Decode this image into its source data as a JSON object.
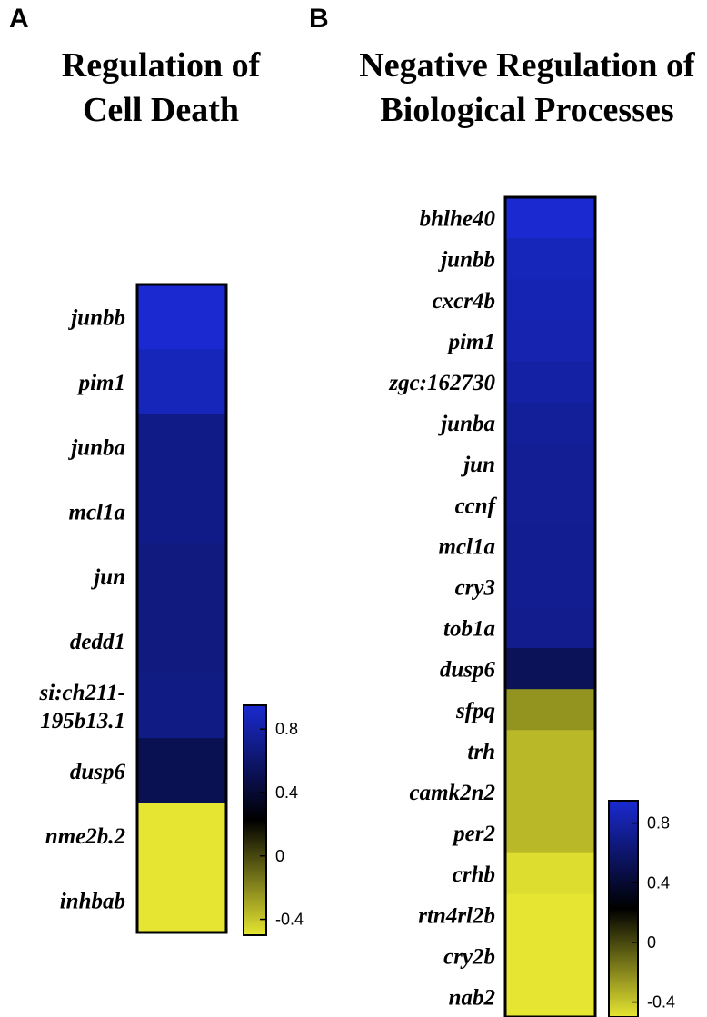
{
  "chart_data": [
    {
      "type": "heatmap",
      "panel": "A",
      "title_lines": [
        "Regulation of",
        "Cell Death"
      ],
      "rows": [
        {
          "label": [
            "junbb"
          ],
          "value": 0.95
        },
        {
          "label": [
            "pim1"
          ],
          "value": 0.85
        },
        {
          "label": [
            "junba"
          ],
          "value": 0.62
        },
        {
          "label": [
            "mcl1a"
          ],
          "value": 0.62
        },
        {
          "label": [
            "jun"
          ],
          "value": 0.58
        },
        {
          "label": [
            "dedd1"
          ],
          "value": 0.58
        },
        {
          "label": [
            "si:ch211-",
            "195b13.1"
          ],
          "value": 0.6
        },
        {
          "label": [
            "dusp6"
          ],
          "value": 0.38
        },
        {
          "label": [
            "nme2b.2"
          ],
          "value": -0.5
        },
        {
          "label": [
            "inhbab"
          ],
          "value": -0.6
        }
      ],
      "colorbar": {
        "range": [
          -0.5,
          0.95
        ],
        "ticks": [
          0.8,
          0.4,
          0,
          -0.4
        ],
        "tick_labels": [
          "0.8",
          "0.4",
          "0",
          "-0.4"
        ]
      }
    },
    {
      "type": "heatmap",
      "panel": "B",
      "title_lines": [
        "Negative Regulation of",
        "Biological Processes"
      ],
      "rows": [
        {
          "label": [
            "bhlhe40"
          ],
          "value": 0.95
        },
        {
          "label": [
            "junbb"
          ],
          "value": 0.85
        },
        {
          "label": [
            "cxcr4b"
          ],
          "value": 0.82
        },
        {
          "label": [
            "pim1"
          ],
          "value": 0.8
        },
        {
          "label": [
            "zgc:162730"
          ],
          "value": 0.75
        },
        {
          "label": [
            "junba"
          ],
          "value": 0.7
        },
        {
          "label": [
            "jun"
          ],
          "value": 0.68
        },
        {
          "label": [
            "ccnf"
          ],
          "value": 0.68
        },
        {
          "label": [
            "mcl1a"
          ],
          "value": 0.66
        },
        {
          "label": [
            "cry3"
          ],
          "value": 0.66
        },
        {
          "label": [
            "tob1a"
          ],
          "value": 0.64
        },
        {
          "label": [
            "dusp6"
          ],
          "value": 0.4
        },
        {
          "label": [
            "sfpq"
          ],
          "value": -0.32
        },
        {
          "label": [
            "trh"
          ],
          "value": -0.4
        },
        {
          "label": [
            "camk2n2"
          ],
          "value": -0.4
        },
        {
          "label": [
            "per2"
          ],
          "value": -0.4
        },
        {
          "label": [
            "crhb"
          ],
          "value": -0.48
        },
        {
          "label": [
            "rtn4rl2b"
          ],
          "value": -0.52
        },
        {
          "label": [
            "cry2b"
          ],
          "value": -0.58
        },
        {
          "label": [
            "nab2"
          ],
          "value": -0.6
        }
      ],
      "colorbar": {
        "range": [
          -0.5,
          0.95
        ],
        "ticks": [
          0.8,
          0.4,
          0,
          -0.4
        ],
        "tick_labels": [
          "0.8",
          "0.4",
          "0",
          "-0.4"
        ]
      }
    }
  ],
  "colors": {
    "high": "#1a2ad0",
    "mid": "#000000",
    "low": "#e6e632",
    "border": "#000000"
  }
}
